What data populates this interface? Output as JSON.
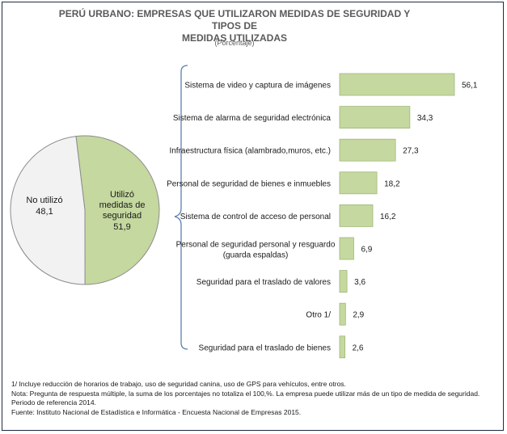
{
  "chart_data": [
    {
      "type": "pie",
      "slices": [
        {
          "label": "Utilizó medidas de seguridad",
          "value": 51.9,
          "value_label": "51,9",
          "color": "#c5d89f"
        },
        {
          "label": "No utilizó",
          "value": 48.1,
          "value_label": "48,1",
          "color": "#f2f2f2"
        }
      ]
    },
    {
      "type": "bar",
      "orientation": "horizontal",
      "color": "#c5d89f",
      "categories": [
        "Sistema de video y captura de imágenes",
        "Sistema de alarma de seguridad electrónica",
        "Infraestructura física (alambrado,muros, etc.)",
        "Personal de seguridad de bienes e inmuebles",
        "Sistema de control de acceso de personal",
        "Personal de seguridad personal y resguardo (guarda espaldas)",
        "Seguridad para el traslado de valores",
        "Otro 1/",
        "Seguridad para el traslado de bienes"
      ],
      "values": [
        56.1,
        34.3,
        27.3,
        18.2,
        16.2,
        6.9,
        3.6,
        2.9,
        2.6
      ],
      "value_labels": [
        "56,1",
        "34,3",
        "27,3",
        "18,2",
        "16,2",
        "6,9",
        "3,6",
        "2,9",
        "2,6"
      ]
    }
  ],
  "title_line1": "PERÚ URBANO: EMPRESAS QUE UTILIZARON MEDIDAS DE SEGURIDAD Y TIPOS DE",
  "title_line2": "MEDIDAS  UTILIZADAS",
  "subtitle": "(Porcentaje)",
  "notes": [
    "1/ Incluye reducción de horarios de trabajo, uso de seguridad canina, uso de GPS para vehículos, entre otros.",
    "Nota: Pregunta de respuesta múltiple, la suma de los porcentajes no totaliza el 100,%. La empresa puede utilizar más de un tipo de medida de seguridad.",
    "Periodo de referencia 2014.",
    "Fuente: Instituto Nacional de Estadística e Informática - Encuesta Nacional de Empresas 2015."
  ]
}
